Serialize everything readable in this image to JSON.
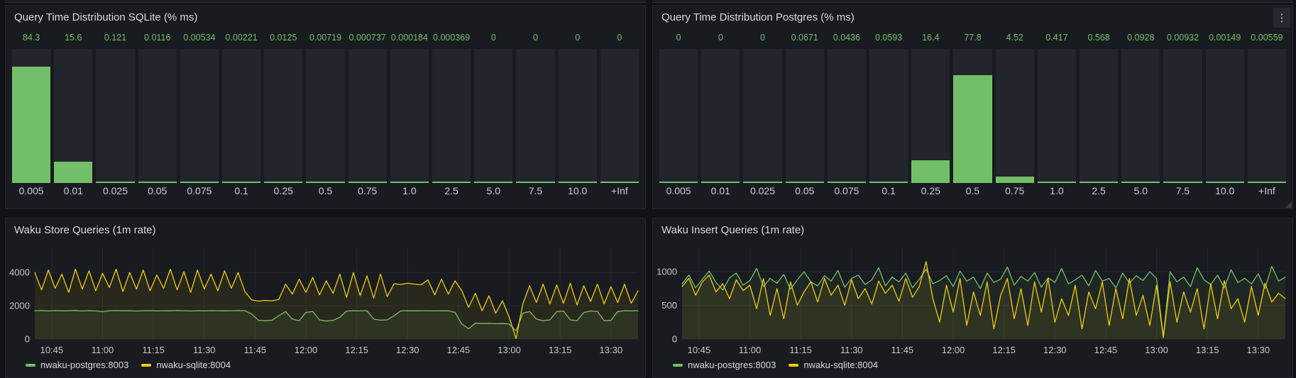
{
  "colors": {
    "green": "#73bf69",
    "yellow": "#f2cc0c",
    "page_bg": "#111217",
    "panel_bg": "#181b1f",
    "bar_bg": "#22252b",
    "title_text": "#d8d9da",
    "axis_text": "#c7c9cc",
    "grid": "rgba(204,204,220,0.07)"
  },
  "icons": {
    "panel_menu": "kebab-vertical-dots",
    "panel_menu_glyph": "⋮",
    "resize": "resize-corner"
  },
  "chart_data": [
    {
      "id": "hist_sqlite",
      "type": "bar",
      "title": "Query Time Distribution SQLite (% ms)",
      "xlabel": "",
      "ylabel": "",
      "grid": false,
      "value_scale_max": 97,
      "categories": [
        "0.005",
        "0.01",
        "0.025",
        "0.05",
        "0.075",
        "0.1",
        "0.25",
        "0.5",
        "0.75",
        "1.0",
        "2.5",
        "5.0",
        "7.5",
        "10.0",
        "+Inf"
      ],
      "values": [
        "84.3",
        "15.6",
        "0.121",
        "0.0116",
        "0.00534",
        "0.00221",
        "0.0125",
        "0.00719",
        "0.000737",
        "0.000184",
        "0.000369",
        "0",
        "0",
        "0",
        "0"
      ]
    },
    {
      "id": "hist_postgres",
      "type": "bar",
      "title": "Query Time Distribution Postgres (% ms)",
      "xlabel": "",
      "ylabel": "",
      "grid": false,
      "value_scale_max": 97,
      "categories": [
        "0.005",
        "0.01",
        "0.025",
        "0.05",
        "0.075",
        "0.1",
        "0.25",
        "0.5",
        "0.75",
        "1.0",
        "2.5",
        "5.0",
        "7.5",
        "10.0",
        "+Inf"
      ],
      "values": [
        "0",
        "0",
        "0",
        "0.0671",
        "0.0436",
        "0.0593",
        "16.4",
        "77.8",
        "4.52",
        "0.417",
        "0.568",
        "0.0928",
        "0.00932",
        "0.00149",
        "0.00559"
      ]
    },
    {
      "id": "ts_store",
      "type": "line",
      "title": "Waku Store Queries (1m rate)",
      "grid": true,
      "legend_position": "bottom-left",
      "ylim": [
        0,
        5500
      ],
      "yticks": [
        {
          "v": 0,
          "label": "0"
        },
        {
          "v": 2000,
          "label": "2000"
        },
        {
          "v": 4000,
          "label": "4000"
        }
      ],
      "x_start_min": 640,
      "x_step_min": 2,
      "x_end_min": 818,
      "xticks": [
        {
          "min": 645,
          "label": "10:45"
        },
        {
          "min": 660,
          "label": "11:00"
        },
        {
          "min": 675,
          "label": "11:15"
        },
        {
          "min": 690,
          "label": "11:30"
        },
        {
          "min": 705,
          "label": "11:45"
        },
        {
          "min": 720,
          "label": "12:00"
        },
        {
          "min": 735,
          "label": "12:15"
        },
        {
          "min": 750,
          "label": "12:30"
        },
        {
          "min": 765,
          "label": "12:45"
        },
        {
          "min": 780,
          "label": "13:00"
        },
        {
          "min": 795,
          "label": "13:15"
        },
        {
          "min": 810,
          "label": "13:30"
        }
      ],
      "series": [
        {
          "name": "nwaku-postgres:8003",
          "color": "green",
          "values": [
            1700,
            1710,
            1690,
            1705,
            1695,
            1700,
            1715,
            1685,
            1700,
            1690,
            1640,
            1700,
            1710,
            1695,
            1700,
            1680,
            1700,
            1705,
            1690,
            1700,
            1695,
            1710,
            1700,
            1685,
            1700,
            1690,
            1705,
            1700,
            1695,
            1700,
            1710,
            1700,
            1500,
            1120,
            1100,
            1130,
            1400,
            1650,
            1200,
            1100,
            1600,
            1660,
            1150,
            1080,
            1120,
            1300,
            1680,
            1700,
            1690,
            1700,
            1200,
            1130,
            1150,
            1400,
            1690,
            1700,
            1695,
            1700,
            1700,
            1690,
            1700,
            1695,
            1600,
            900,
            620,
            950,
            930,
            940,
            920,
            930,
            900,
            480,
            1550,
            1650,
            1200,
            1100,
            1150,
            1650,
            1680,
            1150,
            1100,
            1600,
            1680,
            1660,
            1100,
            1120,
            1650,
            1700,
            1690,
            1700
          ]
        },
        {
          "name": "nwaku-sqlite:8004",
          "color": "yellow",
          "values": [
            4000,
            2950,
            4150,
            3050,
            3900,
            2800,
            4200,
            3000,
            4100,
            2900,
            3950,
            3100,
            4200,
            2850,
            4000,
            3000,
            4150,
            2900,
            3850,
            3050,
            4200,
            2950,
            4050,
            2800,
            4150,
            3000,
            3900,
            2900,
            4100,
            3050,
            4000,
            2850,
            2350,
            2280,
            2320,
            2300,
            2380,
            3300,
            2700,
            3600,
            2800,
            3700,
            2650,
            3500,
            2750,
            3900,
            2500,
            4000,
            2600,
            3800,
            2450,
            3900,
            2550,
            3320,
            3280,
            3350,
            3300,
            3260,
            3550,
            2650,
            3600,
            2700,
            3500,
            2900,
            1900,
            2750,
            1700,
            2600,
            1550,
            2300,
            1300,
            30,
            2100,
            3200,
            2200,
            3300,
            2100,
            3250,
            2150,
            3350,
            2050,
            3200,
            2250,
            3300,
            2100,
            3150,
            2200,
            3300,
            2150,
            2900
          ]
        }
      ]
    },
    {
      "id": "ts_insert",
      "type": "line",
      "title": "Waku Insert Queries (1m rate)",
      "grid": true,
      "legend_position": "bottom-left",
      "ylim": [
        0,
        1360
      ],
      "yticks": [
        {
          "v": 0,
          "label": "0"
        },
        {
          "v": 500,
          "label": "500"
        },
        {
          "v": 1000,
          "label": "1000"
        }
      ],
      "x_start_min": 640,
      "x_step_min": 2,
      "x_end_min": 818,
      "xticks": [
        {
          "min": 645,
          "label": "10:45"
        },
        {
          "min": 660,
          "label": "11:00"
        },
        {
          "min": 675,
          "label": "11:15"
        },
        {
          "min": 690,
          "label": "11:30"
        },
        {
          "min": 705,
          "label": "11:45"
        },
        {
          "min": 720,
          "label": "12:00"
        },
        {
          "min": 735,
          "label": "12:15"
        },
        {
          "min": 750,
          "label": "12:30"
        },
        {
          "min": 765,
          "label": "12:45"
        },
        {
          "min": 780,
          "label": "13:00"
        },
        {
          "min": 795,
          "label": "13:15"
        },
        {
          "min": 810,
          "label": "13:30"
        }
      ],
      "series": [
        {
          "name": "nwaku-postgres:8003",
          "color": "green",
          "values": [
            820,
            950,
            760,
            890,
            1010,
            840,
            730,
            910,
            980,
            800,
            870,
            1050,
            780,
            900,
            830,
            960,
            740,
            880,
            1000,
            850,
            790,
            940,
            860,
            1020,
            770,
            900,
            950,
            810,
            880,
            1060,
            790,
            920,
            850,
            980,
            760,
            890,
            1040,
            820,
            870,
            940,
            780,
            1010,
            860,
            920,
            750,
            980,
            840,
            890,
            1070,
            800,
            930,
            860,
            990,
            770,
            910,
            840,
            1050,
            820,
            880,
            950,
            790,
            1020,
            860,
            900,
            760,
            980,
            830,
            940,
            870,
            1000,
            900,
            40,
            1000,
            850,
            920,
            780,
            1060,
            880,
            810,
            950,
            760,
            1030,
            840,
            900,
            820,
            970,
            750,
            1080,
            860,
            920
          ]
        },
        {
          "name": "nwaku-sqlite:8004",
          "color": "yellow",
          "values": [
            780,
            900,
            650,
            850,
            950,
            700,
            820,
            600,
            880,
            720,
            800,
            450,
            900,
            350,
            750,
            300,
            850,
            500,
            700,
            850,
            550,
            900,
            650,
            800,
            500,
            880,
            600,
            750,
            520,
            860,
            680,
            800,
            560,
            900,
            620,
            780,
            1150,
            600,
            250,
            800,
            400,
            900,
            200,
            700,
            350,
            850,
            150,
            650,
            900,
            300,
            750,
            200,
            850,
            400,
            900,
            250,
            600,
            350,
            800,
            150,
            700,
            450,
            850,
            200,
            750,
            300,
            900,
            350,
            650,
            200,
            800,
            20,
            850,
            250,
            700,
            400,
            750,
            150,
            820,
            300,
            870,
            450,
            600,
            250,
            780,
            350,
            830,
            550,
            680,
            600
          ]
        }
      ]
    }
  ]
}
